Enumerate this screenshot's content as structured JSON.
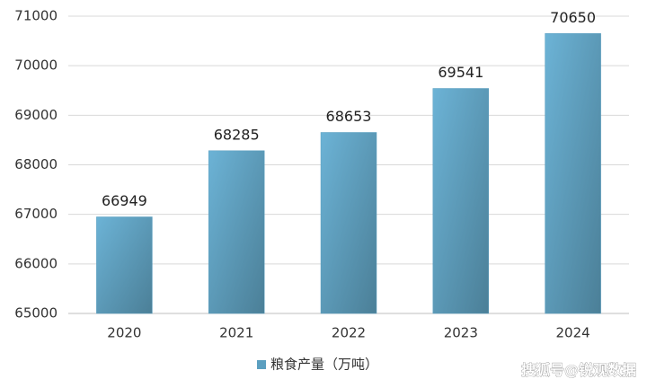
{
  "chart_data": {
    "type": "bar",
    "categories": [
      "2020",
      "2021",
      "2022",
      "2023",
      "2024"
    ],
    "series": [
      {
        "name": "粮食产量（万吨）",
        "color": "#5b9fc0",
        "values": [
          66949,
          68285,
          68653,
          69541,
          70650
        ]
      }
    ],
    "ylim": [
      65000,
      71000
    ],
    "yticks": [
      65000,
      66000,
      67000,
      68000,
      69000,
      70000,
      71000
    ],
    "grid": true,
    "legend": "bottom",
    "data_labels": true
  },
  "watermark": "搜狐号@锐观数据"
}
